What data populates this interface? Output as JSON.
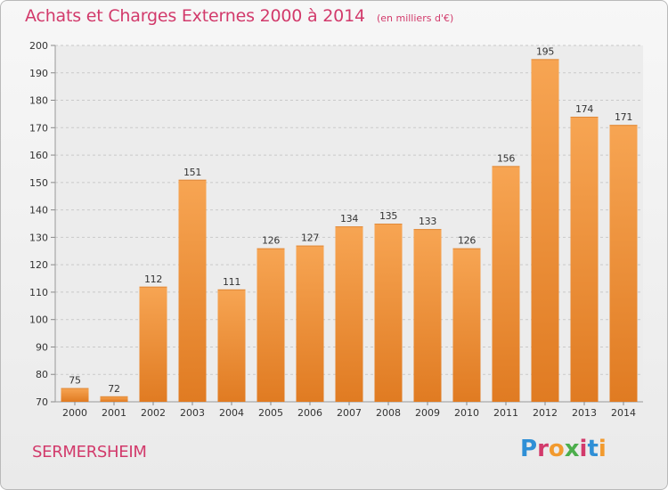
{
  "header": {
    "title": "Achats et Charges Externes 2000 à 2014",
    "subtitle": "(en milliers d'€)"
  },
  "footer": {
    "city": "SERMERSHEIM",
    "logo_text": "Proxiti"
  },
  "colors": {
    "title": "#d23a6b",
    "bar_light": "#f7a553",
    "bar_dark": "#e07b22",
    "logo": [
      "#2f8fd6",
      "#d23a6b",
      "#f29a2e",
      "#4cae4c",
      "#d23a6b",
      "#2f8fd6",
      "#f29a2e"
    ]
  },
  "chart_data": {
    "type": "bar",
    "title": "Achats et Charges Externes 2000 à 2014",
    "subtitle": "(en milliers d'€)",
    "categories": [
      "2000",
      "2001",
      "2002",
      "2003",
      "2004",
      "2005",
      "2006",
      "2007",
      "2008",
      "2009",
      "2010",
      "2011",
      "2012",
      "2013",
      "2014"
    ],
    "values": [
      75,
      72,
      112,
      151,
      111,
      126,
      127,
      134,
      135,
      133,
      126,
      156,
      195,
      174,
      171
    ],
    "ylim": [
      70,
      200
    ],
    "yticks": [
      70,
      80,
      90,
      100,
      110,
      120,
      130,
      140,
      150,
      160,
      170,
      180,
      190,
      200
    ],
    "grid": true,
    "data_labels": true
  }
}
